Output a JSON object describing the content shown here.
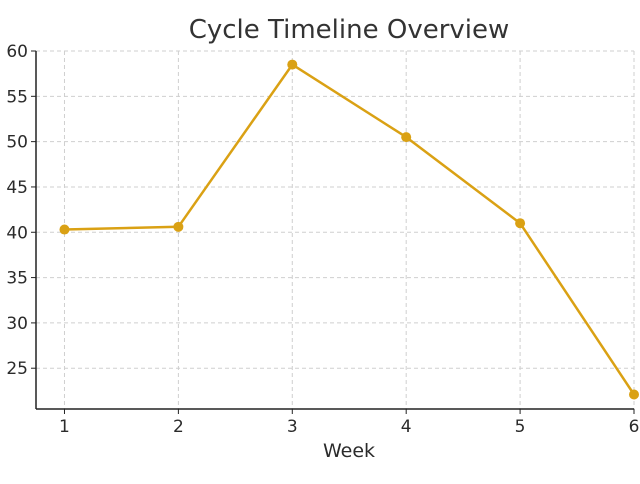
{
  "chart_data": {
    "type": "line",
    "title": "Cycle Timeline Overview",
    "xlabel": "Week",
    "ylabel": "",
    "x": [
      1,
      2,
      3,
      4,
      5,
      6
    ],
    "xlim": [
      0.75,
      6.0
    ],
    "ylim": [
      20.5,
      60.0
    ],
    "xticks": [
      1,
      2,
      3,
      4,
      5,
      6
    ],
    "yticks": [
      25,
      30,
      35,
      40,
      45,
      50,
      55,
      60
    ],
    "grid": true,
    "series": [
      {
        "name": "",
        "values": [
          40.3,
          40.6,
          58.5,
          50.5,
          41.0,
          22.1
        ],
        "color": "#DAA114",
        "marker": "circle"
      }
    ]
  }
}
